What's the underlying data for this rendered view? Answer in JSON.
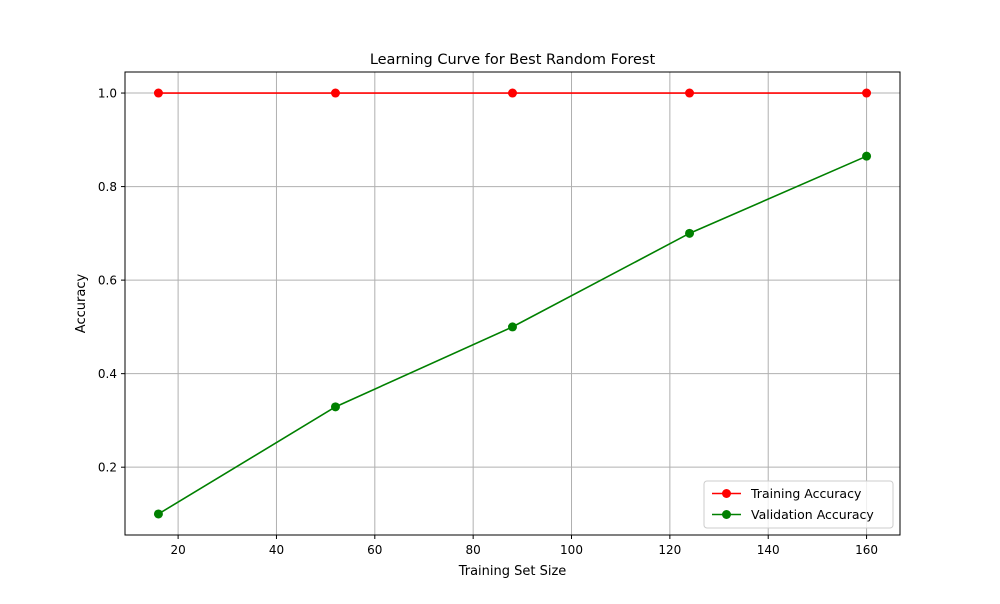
{
  "chart_data": {
    "type": "line",
    "title": "Learning Curve for Best Random Forest",
    "xlabel": "Training Set Size",
    "ylabel": "Accuracy",
    "x": [
      16,
      52,
      88,
      124,
      160
    ],
    "xlim": [
      9.2,
      166.8
    ],
    "ylim": [
      0.055,
      1.045
    ],
    "xticks": [
      20,
      40,
      60,
      80,
      100,
      120,
      140,
      160
    ],
    "yticks": [
      0.2,
      0.4,
      0.6,
      0.8,
      1.0
    ],
    "xtick_labels": [
      "20",
      "40",
      "60",
      "80",
      "100",
      "120",
      "140",
      "160"
    ],
    "ytick_labels": [
      "0.2",
      "0.4",
      "0.6",
      "0.8",
      "1.0"
    ],
    "grid": true,
    "legend_position": "lower right",
    "series": [
      {
        "name": "Training Accuracy",
        "color": "#ff0000",
        "marker": "circle",
        "values": [
          1.0,
          1.0,
          1.0,
          1.0,
          1.0
        ]
      },
      {
        "name": "Validation Accuracy",
        "color": "#008000",
        "marker": "circle",
        "values": [
          0.1,
          0.329,
          0.5,
          0.7,
          0.865
        ]
      }
    ]
  }
}
